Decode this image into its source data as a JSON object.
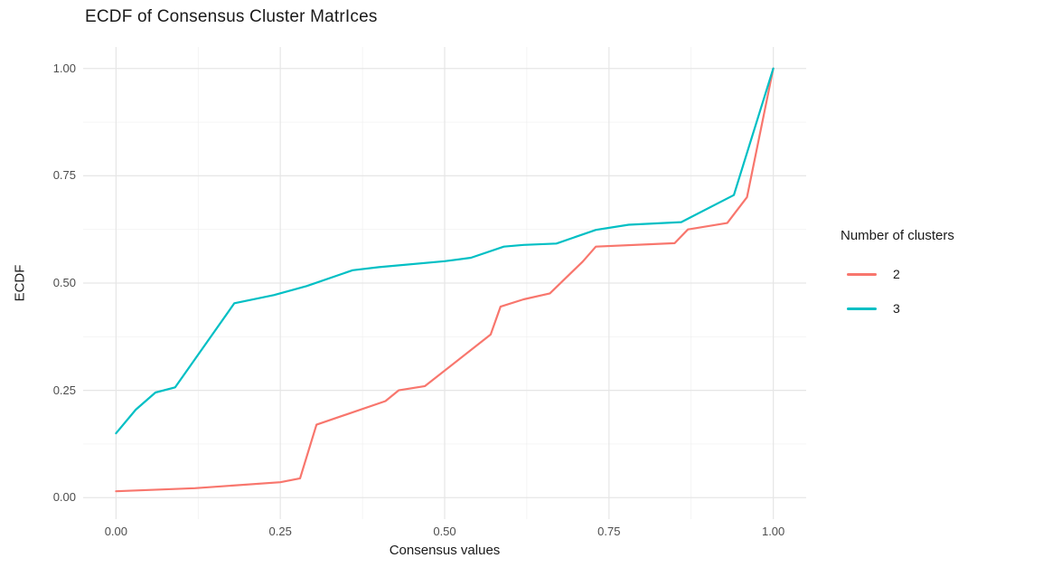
{
  "chart_data": {
    "type": "line",
    "title": "ECDF of Consensus Cluster MatrIces",
    "xlabel": "Consensus values",
    "ylabel": "ECDF",
    "xlim": [
      0,
      1
    ],
    "ylim": [
      0,
      1
    ],
    "x_ticks": [
      0,
      0.25,
      0.5,
      0.75,
      1
    ],
    "x_tick_labels": [
      "0.00",
      "0.25",
      "0.50",
      "0.75",
      "1.00"
    ],
    "y_ticks": [
      0,
      0.25,
      0.5,
      0.75,
      1
    ],
    "y_tick_labels": [
      "0.00",
      "0.25",
      "0.50",
      "0.75",
      "1.00"
    ],
    "x_minor_ticks": [
      0.125,
      0.375,
      0.625,
      0.875
    ],
    "y_minor_ticks": [
      0.125,
      0.375,
      0.625,
      0.875
    ],
    "grid": "major-and-minor, light gray on white",
    "legend_position": "right",
    "series": [
      {
        "name": "2",
        "color": "#F8766D",
        "points": [
          [
            0,
            0.015
          ],
          [
            0.12,
            0.022
          ],
          [
            0.25,
            0.036
          ],
          [
            0.28,
            0.045
          ],
          [
            0.305,
            0.17
          ],
          [
            0.41,
            0.225
          ],
          [
            0.43,
            0.25
          ],
          [
            0.47,
            0.26
          ],
          [
            0.57,
            0.38
          ],
          [
            0.585,
            0.445
          ],
          [
            0.62,
            0.462
          ],
          [
            0.66,
            0.476
          ],
          [
            0.71,
            0.55
          ],
          [
            0.73,
            0.585
          ],
          [
            0.85,
            0.593
          ],
          [
            0.87,
            0.625
          ],
          [
            0.93,
            0.64
          ],
          [
            0.96,
            0.7
          ],
          [
            1,
            1
          ]
        ]
      },
      {
        "name": "3",
        "color": "#00BFC4",
        "points": [
          [
            0,
            0.15
          ],
          [
            0.03,
            0.205
          ],
          [
            0.06,
            0.245
          ],
          [
            0.09,
            0.257
          ],
          [
            0.18,
            0.453
          ],
          [
            0.24,
            0.472
          ],
          [
            0.29,
            0.493
          ],
          [
            0.36,
            0.53
          ],
          [
            0.4,
            0.537
          ],
          [
            0.5,
            0.551
          ],
          [
            0.54,
            0.559
          ],
          [
            0.59,
            0.585
          ],
          [
            0.62,
            0.589
          ],
          [
            0.67,
            0.592
          ],
          [
            0.73,
            0.624
          ],
          [
            0.78,
            0.636
          ],
          [
            0.86,
            0.642
          ],
          [
            0.94,
            0.705
          ],
          [
            1,
            1
          ]
        ]
      }
    ]
  },
  "legend": {
    "title": "Number of clusters",
    "items": [
      {
        "label": "2",
        "color": "#F8766D"
      },
      {
        "label": "3",
        "color": "#00BFC4"
      }
    ]
  },
  "colors": {
    "background": "#FFFFFF",
    "grid_major": "#E6E6E6",
    "grid_minor": "#EFEFEF",
    "tick_text": "#4D4D4D",
    "text": "#1A1A1A"
  }
}
